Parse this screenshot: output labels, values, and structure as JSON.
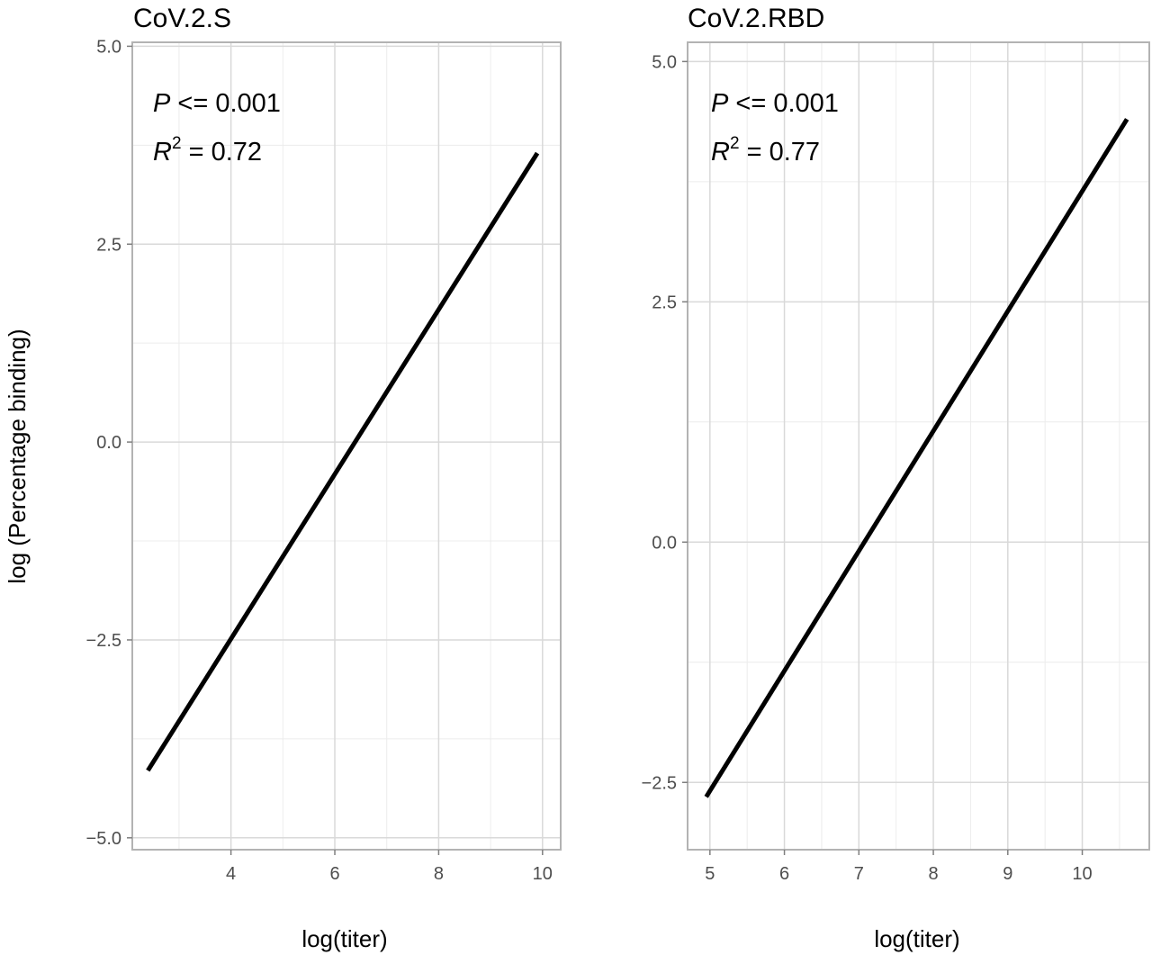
{
  "figure": {
    "ylabel": "log (Percentage binding)"
  },
  "panels": [
    {
      "title": "CoV.2.S",
      "p_label": "P",
      "p_rest": " <= 0.001",
      "r_label": "R",
      "r_sup": "2",
      "r_rest": " = 0.72",
      "xlabel": "log(titer)"
    },
    {
      "title": "CoV.2.RBD",
      "p_label": "P",
      "p_rest": " <= 0.001",
      "r_label": "R",
      "r_sup": "2",
      "r_rest": " = 0.77",
      "xlabel": "log(titer)"
    }
  ],
  "chart_data": [
    {
      "type": "line",
      "title": "CoV.2.S",
      "xlabel": "log(titer)",
      "ylabel": "log (Percentage binding)",
      "xlim": [
        2.1,
        10.35
      ],
      "ylim": [
        -5.15,
        5.05
      ],
      "xticks": [
        4,
        6,
        8,
        10
      ],
      "xtick_labels": [
        "4",
        "6",
        "8",
        "10"
      ],
      "yticks": [
        -5.0,
        -2.5,
        0.0,
        2.5,
        5.0
      ],
      "ytick_labels": [
        "−5.0",
        "−2.5",
        "0.0",
        "2.5",
        "5.0"
      ],
      "grid": true,
      "series": [
        {
          "x": [
            2.4,
            9.9
          ],
          "y": [
            -4.15,
            3.65
          ]
        }
      ],
      "annotations": [
        "P <= 0.001",
        "R2 = 0.72"
      ]
    },
    {
      "type": "line",
      "title": "CoV.2.RBD",
      "xlabel": "log(titer)",
      "ylabel": "log (Percentage binding)",
      "xlim": [
        4.7,
        10.9
      ],
      "ylim": [
        -3.2,
        5.2
      ],
      "xticks": [
        5,
        6,
        7,
        8,
        9,
        10
      ],
      "xtick_labels": [
        "5",
        "6",
        "7",
        "8",
        "9",
        "10"
      ],
      "yticks": [
        -2.5,
        0.0,
        2.5,
        5.0
      ],
      "ytick_labels": [
        "−2.5",
        "0.0",
        "2.5",
        "5.0"
      ],
      "grid": true,
      "series": [
        {
          "x": [
            4.95,
            10.6
          ],
          "y": [
            -2.65,
            4.4
          ]
        }
      ],
      "annotations": [
        "P <= 0.001",
        "R2 = 0.77"
      ]
    }
  ]
}
